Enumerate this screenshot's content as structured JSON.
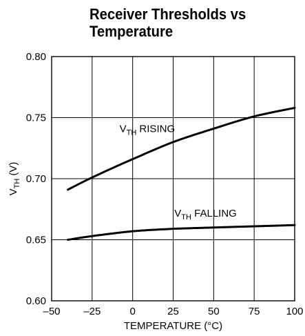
{
  "chart_data": {
    "type": "line",
    "title": "Receiver Thresholds vs Temperature",
    "xlabel": "TEMPERATURE (°C)",
    "ylabel": {
      "main": "V",
      "sub": "TH",
      "suffix": " (V)"
    },
    "xlim": [
      -50,
      100
    ],
    "ylim": [
      0.6,
      0.8
    ],
    "x_ticks": [
      -50,
      -25,
      0,
      25,
      50,
      75,
      100
    ],
    "x_tick_labels": [
      "–50",
      "–25",
      "0",
      "25",
      "50",
      "75",
      "100"
    ],
    "y_ticks": [
      0.6,
      0.65,
      0.7,
      0.75,
      0.8
    ],
    "y_tick_labels": [
      "0.60",
      "0.65",
      "0.70",
      "0.75",
      "0.80"
    ],
    "grid": true,
    "series": [
      {
        "name": "VTH RISING",
        "x": [
          -40,
          -25,
          0,
          25,
          50,
          75,
          100
        ],
        "y": [
          0.691,
          0.701,
          0.716,
          0.73,
          0.741,
          0.751,
          0.758
        ]
      },
      {
        "name": "VTH FALLING",
        "x": [
          -40,
          -25,
          0,
          25,
          50,
          75,
          100
        ],
        "y": [
          0.65,
          0.653,
          0.657,
          0.659,
          0.66,
          0.661,
          0.662
        ]
      }
    ],
    "annotations": [
      {
        "main": "V",
        "sub": "TH",
        "suffix": " RISING",
        "series": 0,
        "x": 9,
        "y": 0.738
      },
      {
        "main": "V",
        "sub": "TH",
        "suffix": " FALLING",
        "series": 1,
        "x": 45,
        "y": 0.669
      }
    ]
  }
}
